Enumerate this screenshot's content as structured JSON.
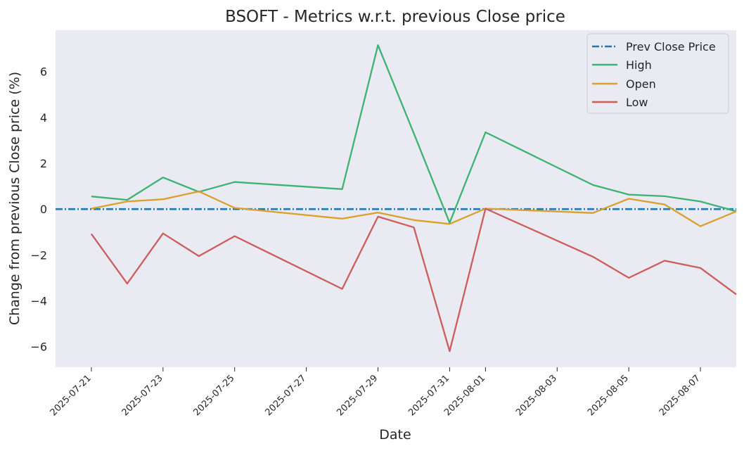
{
  "chart_data": {
    "type": "line",
    "title": "BSOFT - Metrics w.r.t. previous Close price",
    "xlabel": "Date",
    "ylabel": "Change from previous Close price (%)",
    "xlim": [
      "2025-07-20",
      "2025-08-08"
    ],
    "ylim": [
      -6.9,
      7.8
    ],
    "x_ticks": [
      "2025-07-21",
      "2025-07-23",
      "2025-07-25",
      "2025-07-27",
      "2025-07-29",
      "2025-07-31",
      "2025-08-01",
      "2025-08-03",
      "2025-08-05",
      "2025-08-07"
    ],
    "y_ticks": [
      -6,
      -4,
      -2,
      0,
      2,
      4,
      6
    ],
    "y_tick_labels": [
      "−6",
      "−4",
      "−2",
      "0",
      "2",
      "4",
      "6"
    ],
    "x": [
      "2025-07-21",
      "2025-07-22",
      "2025-07-23",
      "2025-07-24",
      "2025-07-25",
      "2025-07-28",
      "2025-07-29",
      "2025-07-30",
      "2025-07-31",
      "2025-08-01",
      "2025-08-04",
      "2025-08-05",
      "2025-08-06",
      "2025-08-07",
      "2025-08-08"
    ],
    "hline": {
      "name": "Prev Close Price",
      "y": 0,
      "color": "#1f77b4",
      "style": "dashdot"
    },
    "series": [
      {
        "name": "High",
        "color": "#3cb371",
        "values": [
          0.55,
          0.4,
          1.38,
          0.75,
          1.18,
          0.87,
          7.15,
          3.3,
          -0.6,
          3.35,
          1.05,
          0.63,
          0.56,
          0.33,
          -0.1
        ]
      },
      {
        "name": "Open",
        "color": "#daa02a",
        "values": [
          0.02,
          0.33,
          0.43,
          0.77,
          0.05,
          -0.42,
          -0.15,
          -0.48,
          -0.65,
          0.02,
          -0.17,
          0.45,
          0.2,
          -0.75,
          -0.1
        ]
      },
      {
        "name": "Low",
        "color": "#cd5c5c",
        "values": [
          -1.08,
          -3.25,
          -1.06,
          -2.05,
          -1.18,
          -3.48,
          -0.33,
          -0.8,
          -6.2,
          0.02,
          -2.08,
          -3.0,
          -2.25,
          -2.57,
          -3.72
        ]
      }
    ],
    "legend": {
      "position": "top-right",
      "entries": [
        "Prev Close Price",
        "High",
        "Open",
        "Low"
      ]
    },
    "grid": false,
    "background": "#eaeaf2"
  }
}
